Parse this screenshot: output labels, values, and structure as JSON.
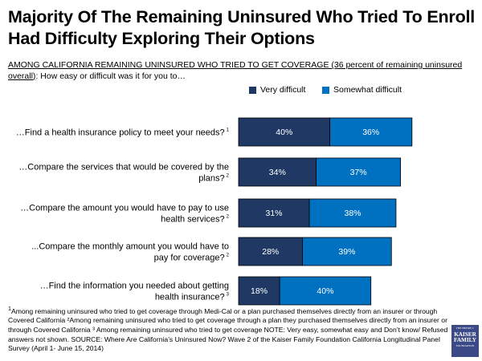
{
  "title": "Majority Of The Remaining Uninsured Who Tried To Enroll Had Difficulty Exploring Their Options",
  "subtitle_underlined": "AMONG CALIFORNIA REMAINING UNINSURED WHO TRIED TO GET COVERAGE (36 percent of remaining uninsured overall)",
  "subtitle_rest": ": How easy or difficult was it for you to…",
  "colors": {
    "very_difficult": "#1f3864",
    "somewhat_difficult": "#0070c0"
  },
  "chart_data": {
    "type": "bar",
    "orientation": "horizontal",
    "stacked": true,
    "legend_position": "top",
    "value_suffix": "%",
    "xlim": [
      0,
      100
    ],
    "categories": [
      {
        "label": "…Find a health insurance policy to meet your needs?",
        "note": "1"
      },
      {
        "label": "…Compare the services that would be covered by the plans?",
        "note": "2"
      },
      {
        "label": "…Compare the amount you would have to pay to use health services?",
        "note": "2"
      },
      {
        "label": "...Compare the monthly amount you would have to pay for coverage?",
        "note": "2"
      },
      {
        "label": "…Find the information you needed about getting health insurance?",
        "note": "3"
      }
    ],
    "series": [
      {
        "name": "Very difficult",
        "values": [
          40,
          34,
          31,
          28,
          18
        ]
      },
      {
        "name": "Somewhat difficult",
        "values": [
          36,
          37,
          38,
          39,
          40
        ]
      }
    ]
  },
  "footnote": "Among remaining uninsured who tried to get coverage through Medi-Cal or a plan purchased themselves directly from an insurer or through Covered California ²Among remaining uninsured who tried to get coverage through a plan they purchased themselves directly from an insurer or through Covered California ³ Among remaining uninsured who tried to get coverage NOTE: Very easy, somewhat easy and Don’t know/ Refused answers not shown. SOURCE: Where Are California’s Uninsured Now? Wave 2 of the Kaiser Family Foundation California Longitudinal Panel Survey (April 1- June 15, 2014)",
  "footnote_marker": "1",
  "logo": {
    "line1": "THE HENRY J.",
    "line2": "KAISER",
    "line3": "FAMILY",
    "line4": "FOUNDATION"
  }
}
